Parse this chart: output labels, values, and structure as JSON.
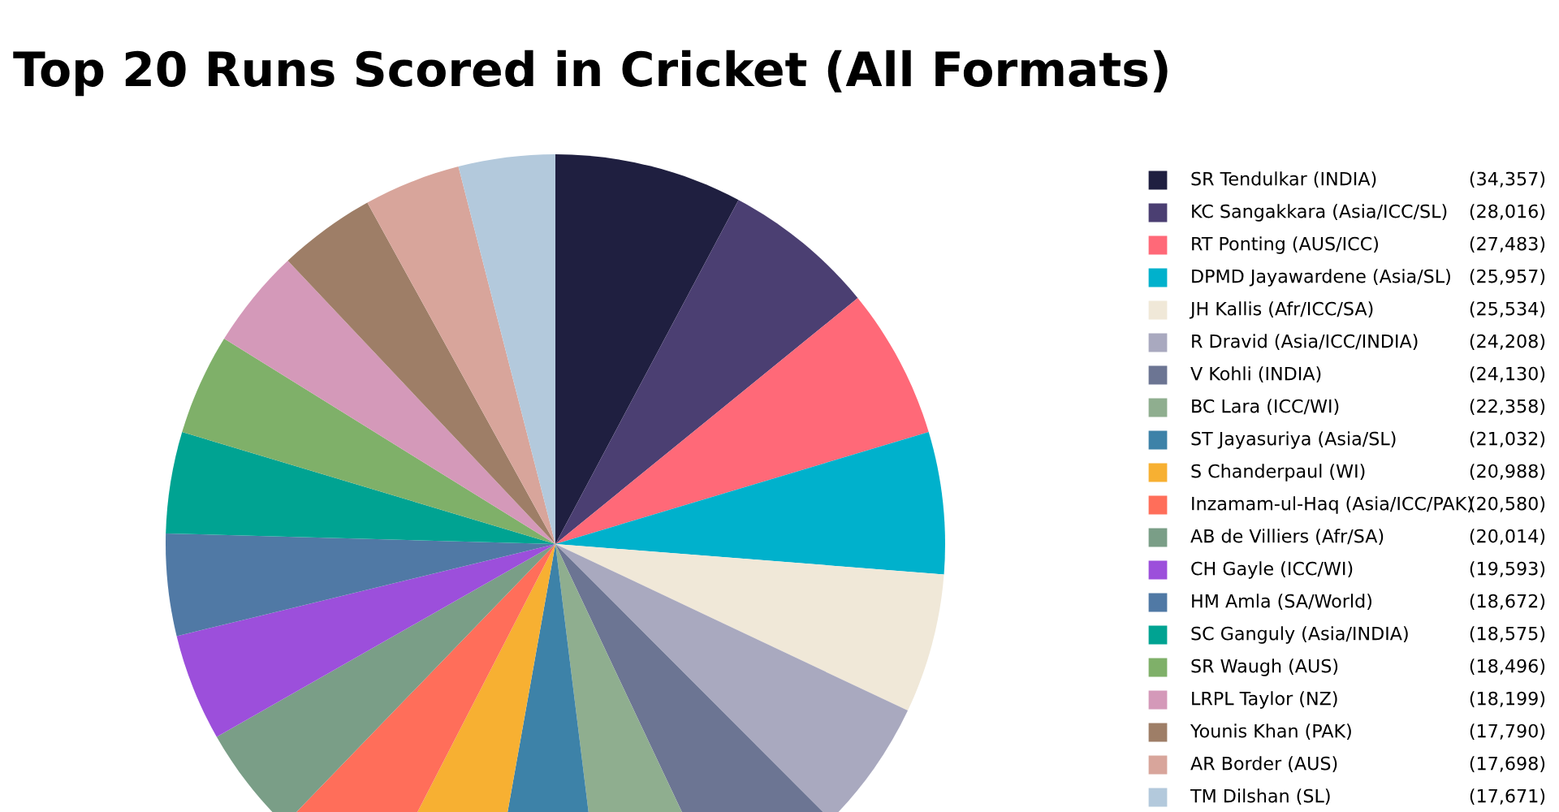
{
  "chart_data": {
    "type": "pie",
    "title": "Top 20 Runs Scored in Cricket (All Formats)",
    "categories": [
      "SR Tendulkar (INDIA)",
      "KC Sangakkara (Asia/ICC/SL)",
      "RT Ponting (AUS/ICC)",
      "DPMD Jayawardene (Asia/SL)",
      "JH Kallis (Afr/ICC/SA)",
      "R Dravid (Asia/ICC/INDIA)",
      "V Kohli (INDIA)",
      "BC Lara (ICC/WI)",
      "ST Jayasuriya (Asia/SL)",
      "S Chanderpaul (WI)",
      "Inzamam-ul-Haq (Asia/ICC/PAK)",
      "AB de Villiers (Afr/SA)",
      "CH Gayle (ICC/WI)",
      "HM Amla (SA/World)",
      "SC Ganguly (Asia/INDIA)",
      "SR Waugh (AUS)",
      "LRPL Taylor (NZ)",
      "Younis Khan (PAK)",
      "AR Border (AUS)",
      "TM Dilshan (SL)"
    ],
    "values": [
      34357,
      28016,
      27483,
      25957,
      25534,
      24208,
      24130,
      22358,
      21032,
      20988,
      20580,
      20014,
      19593,
      18672,
      18575,
      18496,
      18199,
      17790,
      17698,
      17671
    ],
    "value_labels": [
      "(34,357)",
      "(28,016)",
      "(27,483)",
      "(25,957)",
      "(25,534)",
      "(24,208)",
      "(24,130)",
      "(22,358)",
      "(21,032)",
      "(20,988)",
      "(20,580)",
      "(20,014)",
      "(19,593)",
      "(18,672)",
      "(18,575)",
      "(18,496)",
      "(18,199)",
      "(17,790)",
      "(17,698)",
      "(17,671)"
    ],
    "colors": [
      "#1f1f40",
      "#4b3f72",
      "#ff6978",
      "#00b1cc",
      "#f0e8d8",
      "#a9a9bf",
      "#6c7593",
      "#8fae8f",
      "#3d82a8",
      "#f7b032",
      "#ff6e5a",
      "#7a9e87",
      "#9c4fdb",
      "#5079a5",
      "#00a392",
      "#7fb069",
      "#d499b9",
      "#9e7e67",
      "#d8a59b",
      "#b3c9dc"
    ],
    "legend": "right"
  }
}
